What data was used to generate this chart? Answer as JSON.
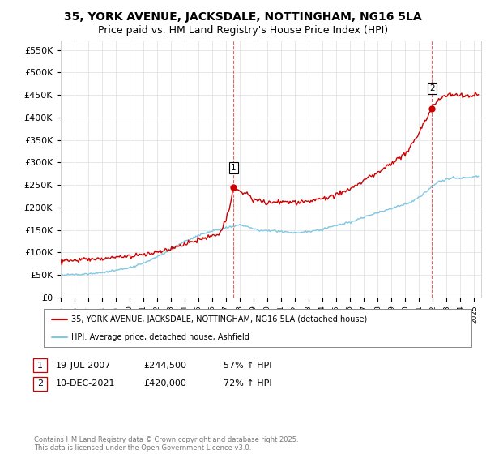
{
  "title": "35, YORK AVENUE, JACKSDALE, NOTTINGHAM, NG16 5LA",
  "subtitle": "Price paid vs. HM Land Registry's House Price Index (HPI)",
  "background_color": "#ffffff",
  "grid_color": "#dddddd",
  "ylim": [
    0,
    570000
  ],
  "yticks": [
    0,
    50000,
    100000,
    150000,
    200000,
    250000,
    300000,
    350000,
    400000,
    450000,
    500000,
    550000
  ],
  "ytick_labels": [
    "£0",
    "£50K",
    "£100K",
    "£150K",
    "£200K",
    "£250K",
    "£300K",
    "£350K",
    "£400K",
    "£450K",
    "£500K",
    "£550K"
  ],
  "hpi_color": "#7ec8e3",
  "price_color": "#cc0000",
  "sale1_date": "19-JUL-2007",
  "sale1_price": 244500,
  "sale1_x": 2007.54,
  "sale2_date": "10-DEC-2021",
  "sale2_price": 420000,
  "sale2_x": 2021.94,
  "legend_line1": "35, YORK AVENUE, JACKSDALE, NOTTINGHAM, NG16 5LA (detached house)",
  "legend_line2": "HPI: Average price, detached house, Ashfield",
  "footer": "Contains HM Land Registry data © Crown copyright and database right 2025.\nThis data is licensed under the Open Government Licence v3.0.",
  "title_fontsize": 10,
  "subtitle_fontsize": 9,
  "tick_fontsize": 8,
  "annot_fontsize": 8
}
